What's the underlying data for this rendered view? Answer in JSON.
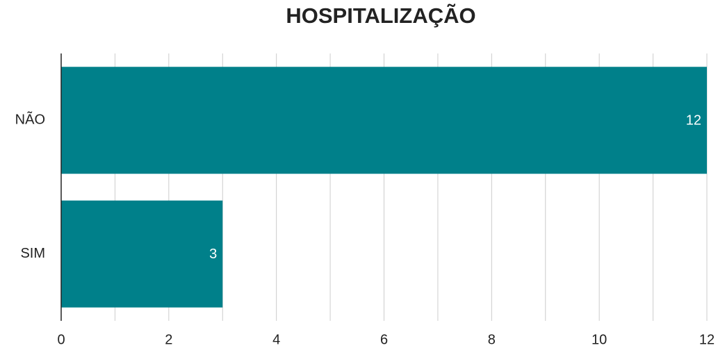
{
  "chart_data": {
    "type": "bar",
    "orientation": "horizontal",
    "title": "HOSPITALIZAÇÃO",
    "categories": [
      "NÃO",
      "SIM"
    ],
    "values": [
      12,
      3
    ],
    "color": "#00808a",
    "xlim": [
      0,
      12
    ],
    "xticks": [
      0,
      2,
      4,
      6,
      8,
      10,
      12
    ],
    "grid": true,
    "minor_grid": true,
    "data_labels": true
  }
}
